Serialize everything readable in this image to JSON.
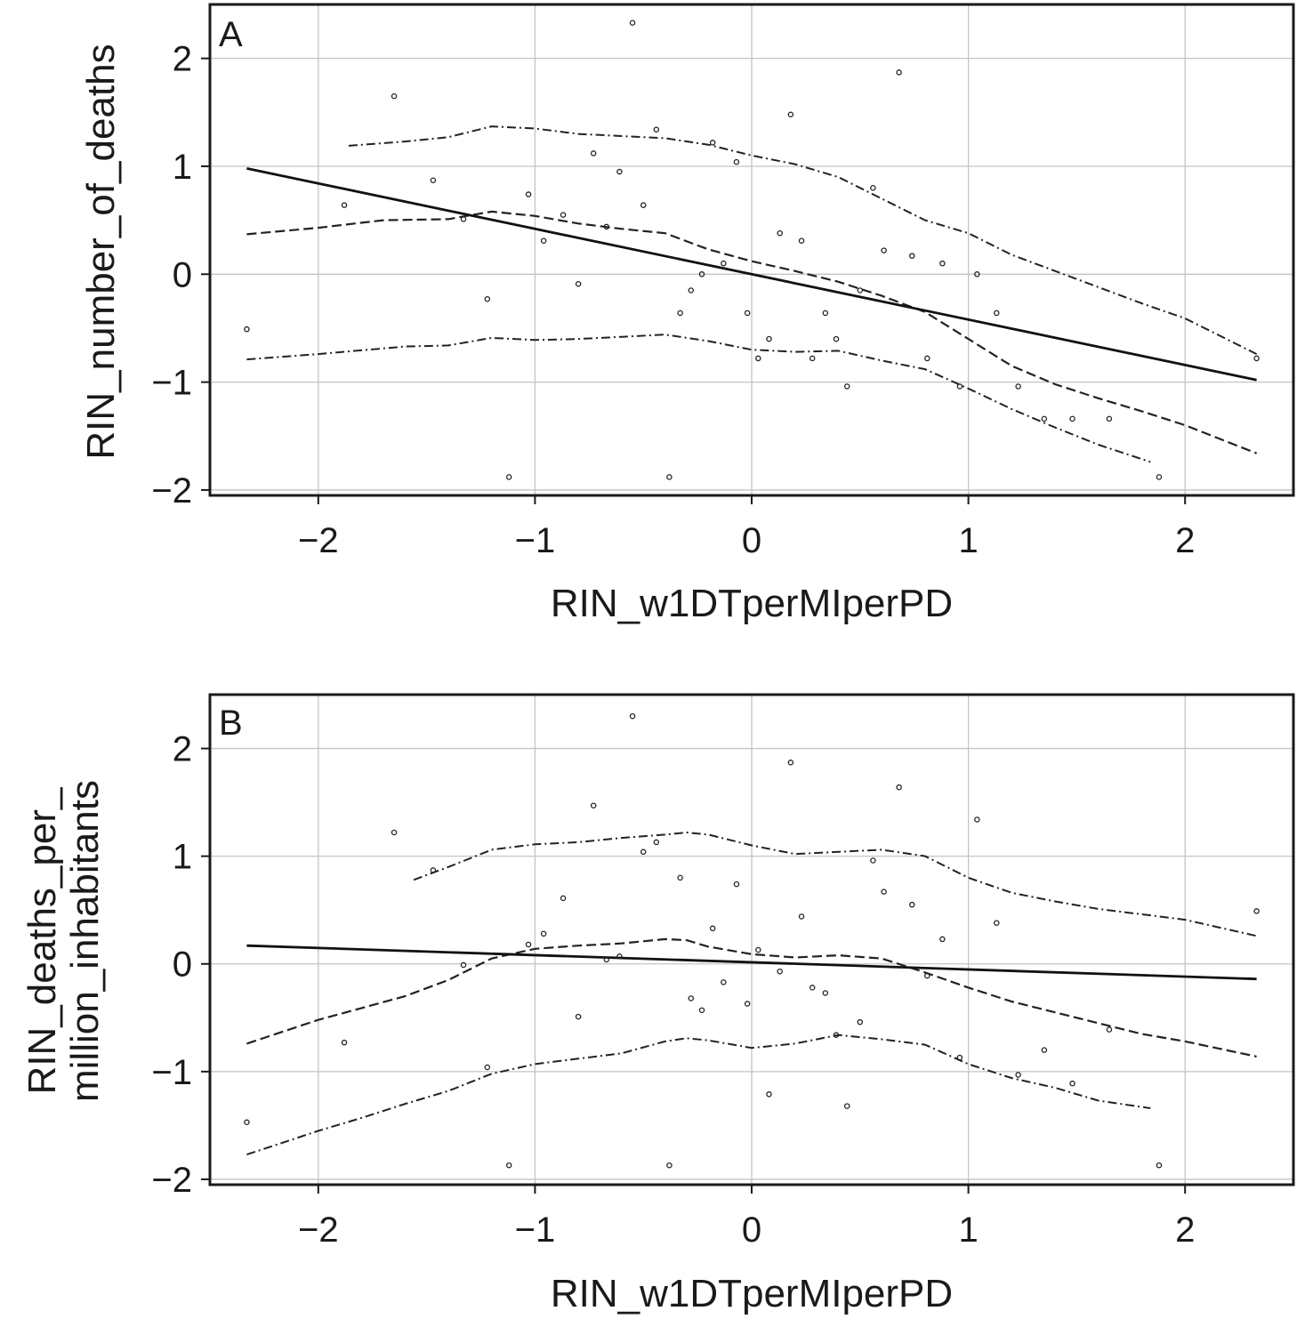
{
  "chart_data": [
    {
      "panel": "A",
      "type": "scatter",
      "xlabel": "RIN_w1DTperMIperPD",
      "ylabel": [
        "RIN_number_of_deaths"
      ],
      "xlim": [
        -2.5,
        2.5
      ],
      "ylim": [
        -2.05,
        2.5
      ],
      "xticks": [
        -2,
        -1,
        0,
        1,
        2
      ],
      "yticks": [
        -2,
        -1,
        0,
        1,
        2
      ],
      "tick_labels": {
        "x": [
          "−2",
          "−1",
          "0",
          "1",
          "2"
        ],
        "y": [
          "−2",
          "−1",
          "0",
          "1",
          "2"
        ]
      },
      "grid": true,
      "points": [
        [
          -2.33,
          -0.51
        ],
        [
          -1.88,
          0.64
        ],
        [
          -1.65,
          1.65
        ],
        [
          -1.47,
          0.87
        ],
        [
          -1.33,
          0.51
        ],
        [
          -1.22,
          -0.23
        ],
        [
          -1.12,
          -1.88
        ],
        [
          -1.03,
          0.74
        ],
        [
          -0.96,
          0.31
        ],
        [
          -0.87,
          0.55
        ],
        [
          -0.8,
          -0.09
        ],
        [
          -0.73,
          1.12
        ],
        [
          -0.67,
          0.44
        ],
        [
          -0.61,
          0.95
        ],
        [
          -0.55,
          2.33
        ],
        [
          -0.5,
          0.64
        ],
        [
          -0.44,
          1.34
        ],
        [
          -0.38,
          -1.88
        ],
        [
          -0.33,
          -0.36
        ],
        [
          -0.28,
          -0.15
        ],
        [
          -0.23,
          0.0
        ],
        [
          -0.18,
          1.22
        ],
        [
          -0.13,
          0.1
        ],
        [
          -0.07,
          1.04
        ],
        [
          -0.02,
          -0.36
        ],
        [
          0.03,
          -0.78
        ],
        [
          0.08,
          -0.6
        ],
        [
          0.13,
          0.38
        ],
        [
          0.18,
          1.48
        ],
        [
          0.23,
          0.31
        ],
        [
          0.28,
          -0.78
        ],
        [
          0.34,
          -0.36
        ],
        [
          0.39,
          -0.6
        ],
        [
          0.44,
          -1.04
        ],
        [
          0.5,
          -0.15
        ],
        [
          0.56,
          0.8
        ],
        [
          0.61,
          0.22
        ],
        [
          0.68,
          1.87
        ],
        [
          0.74,
          0.17
        ],
        [
          0.81,
          -0.78
        ],
        [
          0.88,
          0.1
        ],
        [
          0.96,
          -1.04
        ],
        [
          1.04,
          0.0
        ],
        [
          1.13,
          -0.36
        ],
        [
          1.23,
          -1.04
        ],
        [
          1.35,
          -1.34
        ],
        [
          1.48,
          -1.34
        ],
        [
          1.65,
          -1.34
        ],
        [
          1.88,
          -1.88
        ],
        [
          2.33,
          -0.78
        ]
      ],
      "fit_line": {
        "x": [
          -2.33,
          2.33
        ],
        "y": [
          0.98,
          -0.98
        ]
      },
      "smooth": {
        "x": [
          -2.33,
          -2.0,
          -1.7,
          -1.4,
          -1.2,
          -1.0,
          -0.8,
          -0.6,
          -0.4,
          -0.2,
          0.0,
          0.2,
          0.4,
          0.6,
          0.8,
          1.0,
          1.2,
          1.4,
          1.6,
          1.8,
          2.0,
          2.33
        ],
        "y": [
          0.37,
          0.43,
          0.5,
          0.51,
          0.58,
          0.54,
          0.47,
          0.42,
          0.38,
          0.23,
          0.12,
          0.03,
          -0.07,
          -0.2,
          -0.35,
          -0.6,
          -0.85,
          -1.02,
          -1.15,
          -1.27,
          -1.4,
          -1.66
        ]
      },
      "band_upper": {
        "x": [
          -1.86,
          -1.6,
          -1.4,
          -1.2,
          -1.0,
          -0.8,
          -0.6,
          -0.4,
          -0.2,
          0.0,
          0.2,
          0.4,
          0.6,
          0.8,
          1.0,
          1.2,
          1.4,
          1.6,
          1.8,
          2.0,
          2.33
        ],
        "y": [
          1.19,
          1.23,
          1.27,
          1.37,
          1.35,
          1.3,
          1.28,
          1.26,
          1.2,
          1.1,
          1.02,
          0.9,
          0.7,
          0.5,
          0.38,
          0.18,
          0.03,
          -0.12,
          -0.27,
          -0.41,
          -0.74
        ]
      },
      "band_lower": {
        "x": [
          -2.33,
          -2.0,
          -1.6,
          -1.4,
          -1.2,
          -1.0,
          -0.8,
          -0.6,
          -0.4,
          -0.2,
          0.0,
          0.2,
          0.4,
          0.6,
          0.8,
          1.0,
          1.2,
          1.4,
          1.6,
          1.84
        ],
        "y": [
          -0.79,
          -0.74,
          -0.67,
          -0.66,
          -0.59,
          -0.61,
          -0.6,
          -0.58,
          -0.56,
          -0.62,
          -0.7,
          -0.72,
          -0.71,
          -0.8,
          -0.88,
          -1.06,
          -1.25,
          -1.42,
          -1.58,
          -1.74
        ]
      }
    },
    {
      "panel": "B",
      "type": "scatter",
      "xlabel": "RIN_w1DTperMIperPD",
      "ylabel": [
        "RIN_deaths_per_",
        "million_inhabitants"
      ],
      "xlim": [
        -2.5,
        2.5
      ],
      "ylim": [
        -2.05,
        2.5
      ],
      "xticks": [
        -2,
        -1,
        0,
        1,
        2
      ],
      "yticks": [
        -2,
        -1,
        0,
        1,
        2
      ],
      "tick_labels": {
        "x": [
          "−2",
          "−1",
          "0",
          "1",
          "2"
        ],
        "y": [
          "−2",
          "−1",
          "0",
          "1",
          "2"
        ]
      },
      "grid": true,
      "points": [
        [
          -2.33,
          -1.47
        ],
        [
          -1.88,
          -0.73
        ],
        [
          -1.65,
          1.22
        ],
        [
          -1.47,
          0.87
        ],
        [
          -1.33,
          -0.01
        ],
        [
          -1.22,
          -0.96
        ],
        [
          -1.12,
          -1.87
        ],
        [
          -1.03,
          0.18
        ],
        [
          -0.96,
          0.28
        ],
        [
          -0.87,
          0.61
        ],
        [
          -0.8,
          -0.49
        ],
        [
          -0.73,
          1.47
        ],
        [
          -0.67,
          0.04
        ],
        [
          -0.61,
          0.07
        ],
        [
          -0.55,
          2.3
        ],
        [
          -0.5,
          1.04
        ],
        [
          -0.44,
          1.13
        ],
        [
          -0.38,
          -1.87
        ],
        [
          -0.33,
          0.8
        ],
        [
          -0.28,
          -0.32
        ],
        [
          -0.23,
          -0.43
        ],
        [
          -0.18,
          0.33
        ],
        [
          -0.13,
          -0.17
        ],
        [
          -0.07,
          0.74
        ],
        [
          -0.02,
          -0.37
        ],
        [
          0.03,
          0.13
        ],
        [
          0.08,
          -1.21
        ],
        [
          0.13,
          -0.07
        ],
        [
          0.18,
          1.87
        ],
        [
          0.23,
          0.44
        ],
        [
          0.28,
          -0.22
        ],
        [
          0.34,
          -0.27
        ],
        [
          0.39,
          -0.66
        ],
        [
          0.44,
          -1.32
        ],
        [
          0.5,
          -0.54
        ],
        [
          0.56,
          0.96
        ],
        [
          0.61,
          0.67
        ],
        [
          0.68,
          1.64
        ],
        [
          0.74,
          0.55
        ],
        [
          0.81,
          -0.11
        ],
        [
          0.88,
          0.23
        ],
        [
          0.96,
          -0.87
        ],
        [
          1.04,
          1.34
        ],
        [
          1.13,
          0.38
        ],
        [
          1.23,
          -1.03
        ],
        [
          1.35,
          -0.8
        ],
        [
          1.48,
          -1.11
        ],
        [
          1.65,
          -0.61
        ],
        [
          1.88,
          -1.87
        ],
        [
          2.33,
          0.49
        ]
      ],
      "fit_line": {
        "x": [
          -2.33,
          2.33
        ],
        "y": [
          0.17,
          -0.14
        ]
      },
      "smooth": {
        "x": [
          -2.33,
          -2.0,
          -1.6,
          -1.4,
          -1.2,
          -1.0,
          -0.8,
          -0.6,
          -0.4,
          -0.3,
          -0.2,
          0.0,
          0.2,
          0.4,
          0.6,
          0.8,
          1.0,
          1.2,
          1.4,
          1.6,
          1.8,
          2.0,
          2.33
        ],
        "y": [
          -0.74,
          -0.52,
          -0.3,
          -0.15,
          0.05,
          0.14,
          0.17,
          0.19,
          0.23,
          0.22,
          0.16,
          0.09,
          0.06,
          0.08,
          0.05,
          -0.08,
          -0.22,
          -0.35,
          -0.45,
          -0.55,
          -0.65,
          -0.72,
          -0.86
        ]
      },
      "band_upper": {
        "x": [
          -1.56,
          -1.4,
          -1.2,
          -1.0,
          -0.8,
          -0.6,
          -0.4,
          -0.3,
          -0.2,
          0.0,
          0.2,
          0.4,
          0.6,
          0.8,
          1.0,
          1.2,
          1.4,
          1.6,
          1.8,
          2.0,
          2.33
        ],
        "y": [
          0.78,
          0.9,
          1.06,
          1.11,
          1.13,
          1.17,
          1.2,
          1.22,
          1.2,
          1.1,
          1.02,
          1.04,
          1.06,
          1.0,
          0.8,
          0.66,
          0.58,
          0.51,
          0.46,
          0.41,
          0.26
        ]
      },
      "band_lower": {
        "x": [
          -2.33,
          -2.0,
          -1.8,
          -1.6,
          -1.4,
          -1.2,
          -1.0,
          -0.8,
          -0.6,
          -0.4,
          -0.3,
          -0.2,
          0.0,
          0.2,
          0.4,
          0.6,
          0.8,
          1.0,
          1.2,
          1.4,
          1.6,
          1.84
        ],
        "y": [
          -1.77,
          -1.55,
          -1.43,
          -1.3,
          -1.18,
          -1.02,
          -0.93,
          -0.88,
          -0.83,
          -0.72,
          -0.69,
          -0.71,
          -0.78,
          -0.74,
          -0.66,
          -0.7,
          -0.75,
          -0.93,
          -1.06,
          -1.15,
          -1.27,
          -1.34
        ]
      }
    }
  ]
}
